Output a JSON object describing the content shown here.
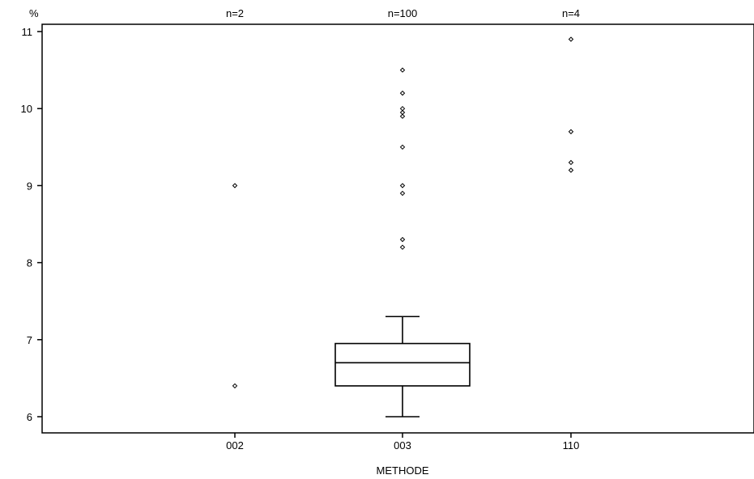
{
  "chart_data": {
    "type": "boxplot",
    "title": "",
    "xlabel": "METHODE",
    "ylabel": "%",
    "ylim": [
      5.8,
      11.1
    ],
    "yticks": [
      6,
      7,
      8,
      9,
      10,
      11
    ],
    "grid": false,
    "categories": [
      "002",
      "003",
      "110"
    ],
    "counts": [
      "n=2",
      "n=100",
      "n=4"
    ],
    "boxes": [
      {
        "category": "002",
        "outliers": [
          9.0,
          6.4
        ]
      },
      {
        "category": "003",
        "whisker_low": 6.0,
        "q1": 6.4,
        "median": 6.7,
        "q3": 6.95,
        "whisker_high": 7.3,
        "outliers": [
          10.5,
          10.2,
          10.0,
          9.95,
          9.9,
          9.5,
          9.0,
          8.9,
          8.3,
          8.2
        ]
      },
      {
        "category": "110",
        "outliers": [
          10.9,
          9.7,
          9.3,
          9.2
        ]
      }
    ],
    "colors": {
      "line": "#000000",
      "background": "#ffffff"
    }
  }
}
